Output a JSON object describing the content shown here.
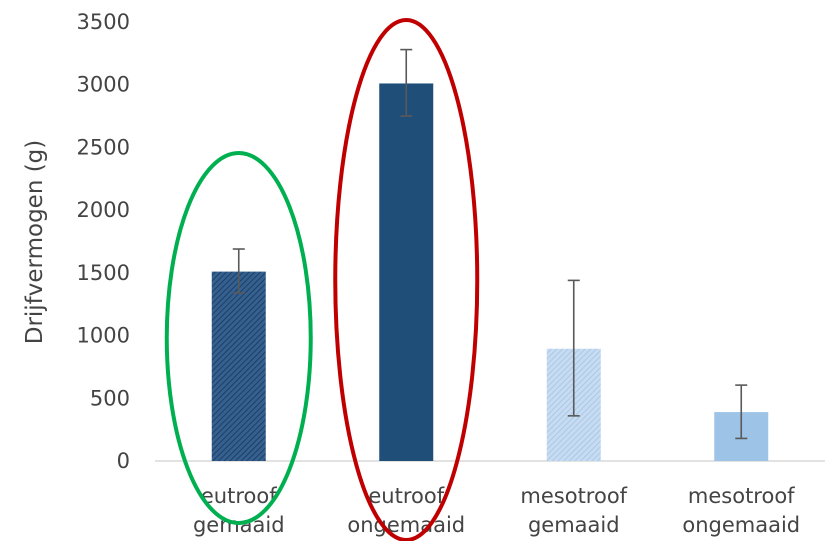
{
  "chart_data": {
    "type": "bar",
    "title": "",
    "xlabel": "",
    "ylabel": "Drijfvermogen (g)",
    "ylim": [
      0,
      3500
    ],
    "ytick_values": [
      0,
      500,
      1000,
      1500,
      2000,
      2500,
      3000,
      3500
    ],
    "yticks": [
      "0",
      "500",
      "1000",
      "1500",
      "2000",
      "2500",
      "3000",
      "3500"
    ],
    "grid": false,
    "categories": [
      {
        "line1": "eutroof",
        "line2": "gemaaid"
      },
      {
        "line1": "eutroof",
        "line2": "ongemaaid"
      },
      {
        "line1": "mesotroof",
        "line2": "gemaaid"
      },
      {
        "line1": "mesotroof",
        "line2": "ongemaaid"
      }
    ],
    "values": [
      1510,
      3010,
      895,
      390
    ],
    "error_low": [
      1340,
      2750,
      360,
      180
    ],
    "error_high": [
      1690,
      3280,
      1440,
      605
    ],
    "bar_colors": [
      "#2d527f",
      "#1f4e79",
      "#b7d0ea",
      "#9dc3e6"
    ],
    "bar_patterns": [
      "hatch-dark",
      "solid",
      "hatch-light",
      "solid"
    ],
    "highlights": [
      {
        "category_index": 0,
        "shape": "ellipse",
        "color": "#00b050"
      },
      {
        "category_index": 1,
        "shape": "ellipse",
        "color": "#c00000"
      }
    ]
  }
}
